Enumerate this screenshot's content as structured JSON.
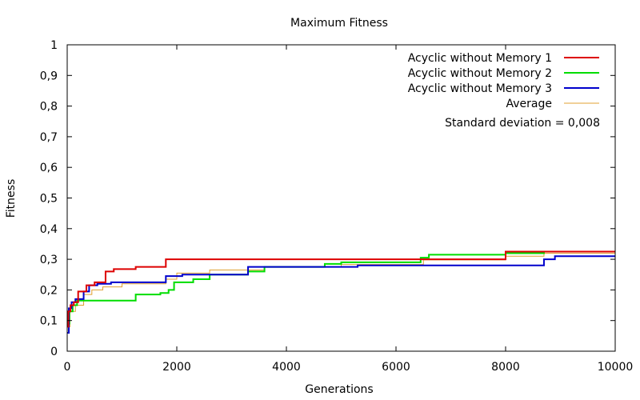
{
  "chart_data": {
    "type": "line",
    "title": "Maximum Fitness",
    "xlabel": "Generations",
    "ylabel": "Fitness",
    "xlim": [
      0,
      10000
    ],
    "ylim": [
      0,
      1
    ],
    "x_ticks": [
      "0",
      "2000",
      "4000",
      "6000",
      "8000",
      "10000"
    ],
    "x_tick_values": [
      0,
      2000,
      4000,
      6000,
      8000,
      10000
    ],
    "y_ticks": [
      "0",
      "0,1",
      "0,2",
      "0,3",
      "0,4",
      "0,5",
      "0,6",
      "0,7",
      "0,8",
      "0,9",
      "1"
    ],
    "y_tick_values": [
      0,
      0.1,
      0.2,
      0.3,
      0.4,
      0.5,
      0.6,
      0.7,
      0.8,
      0.9,
      1
    ],
    "grid": false,
    "legend_position": "top-right",
    "annotation": "Standard deviation = 0,008",
    "series": [
      {
        "name": "Acyclic without Memory 1",
        "color": "#dd0000",
        "step": true,
        "points": [
          [
            0,
            0.08
          ],
          [
            20,
            0.13
          ],
          [
            60,
            0.15
          ],
          [
            120,
            0.16
          ],
          [
            200,
            0.195
          ],
          [
            350,
            0.215
          ],
          [
            500,
            0.225
          ],
          [
            700,
            0.26
          ],
          [
            850,
            0.268
          ],
          [
            1250,
            0.275
          ],
          [
            1800,
            0.3
          ],
          [
            4700,
            0.3
          ],
          [
            6400,
            0.3
          ],
          [
            8000,
            0.325
          ],
          [
            8450,
            0.325
          ],
          [
            10000,
            0.325
          ]
        ]
      },
      {
        "name": "Acyclic without Memory 2",
        "color": "#00dd00",
        "step": true,
        "points": [
          [
            0,
            0.09
          ],
          [
            40,
            0.13
          ],
          [
            100,
            0.15
          ],
          [
            180,
            0.165
          ],
          [
            1250,
            0.185
          ],
          [
            1700,
            0.19
          ],
          [
            1850,
            0.2
          ],
          [
            1950,
            0.225
          ],
          [
            2300,
            0.235
          ],
          [
            2600,
            0.25
          ],
          [
            3300,
            0.26
          ],
          [
            3600,
            0.275
          ],
          [
            4700,
            0.285
          ],
          [
            5000,
            0.29
          ],
          [
            6450,
            0.305
          ],
          [
            6600,
            0.315
          ],
          [
            8000,
            0.32
          ],
          [
            8700,
            0.325
          ],
          [
            10000,
            0.325
          ]
        ]
      },
      {
        "name": "Acyclic without Memory 3",
        "color": "#0000cc",
        "step": true,
        "points": [
          [
            0,
            0.06
          ],
          [
            30,
            0.14
          ],
          [
            80,
            0.16
          ],
          [
            150,
            0.17
          ],
          [
            300,
            0.195
          ],
          [
            400,
            0.215
          ],
          [
            550,
            0.22
          ],
          [
            800,
            0.225
          ],
          [
            1800,
            0.245
          ],
          [
            2100,
            0.25
          ],
          [
            3300,
            0.275
          ],
          [
            5300,
            0.28
          ],
          [
            8700,
            0.3
          ],
          [
            8900,
            0.31
          ],
          [
            10000,
            0.31
          ]
        ]
      },
      {
        "name": "Average",
        "color": "#e0a030",
        "step": true,
        "points": [
          [
            0,
            0.08
          ],
          [
            50,
            0.13
          ],
          [
            150,
            0.15
          ],
          [
            300,
            0.185
          ],
          [
            450,
            0.2
          ],
          [
            650,
            0.21
          ],
          [
            1000,
            0.22
          ],
          [
            1800,
            0.235
          ],
          [
            2000,
            0.255
          ],
          [
            2600,
            0.265
          ],
          [
            3600,
            0.275
          ],
          [
            5000,
            0.283
          ],
          [
            6500,
            0.298
          ],
          [
            8000,
            0.31
          ],
          [
            8700,
            0.32
          ],
          [
            10000,
            0.32
          ]
        ]
      }
    ]
  }
}
